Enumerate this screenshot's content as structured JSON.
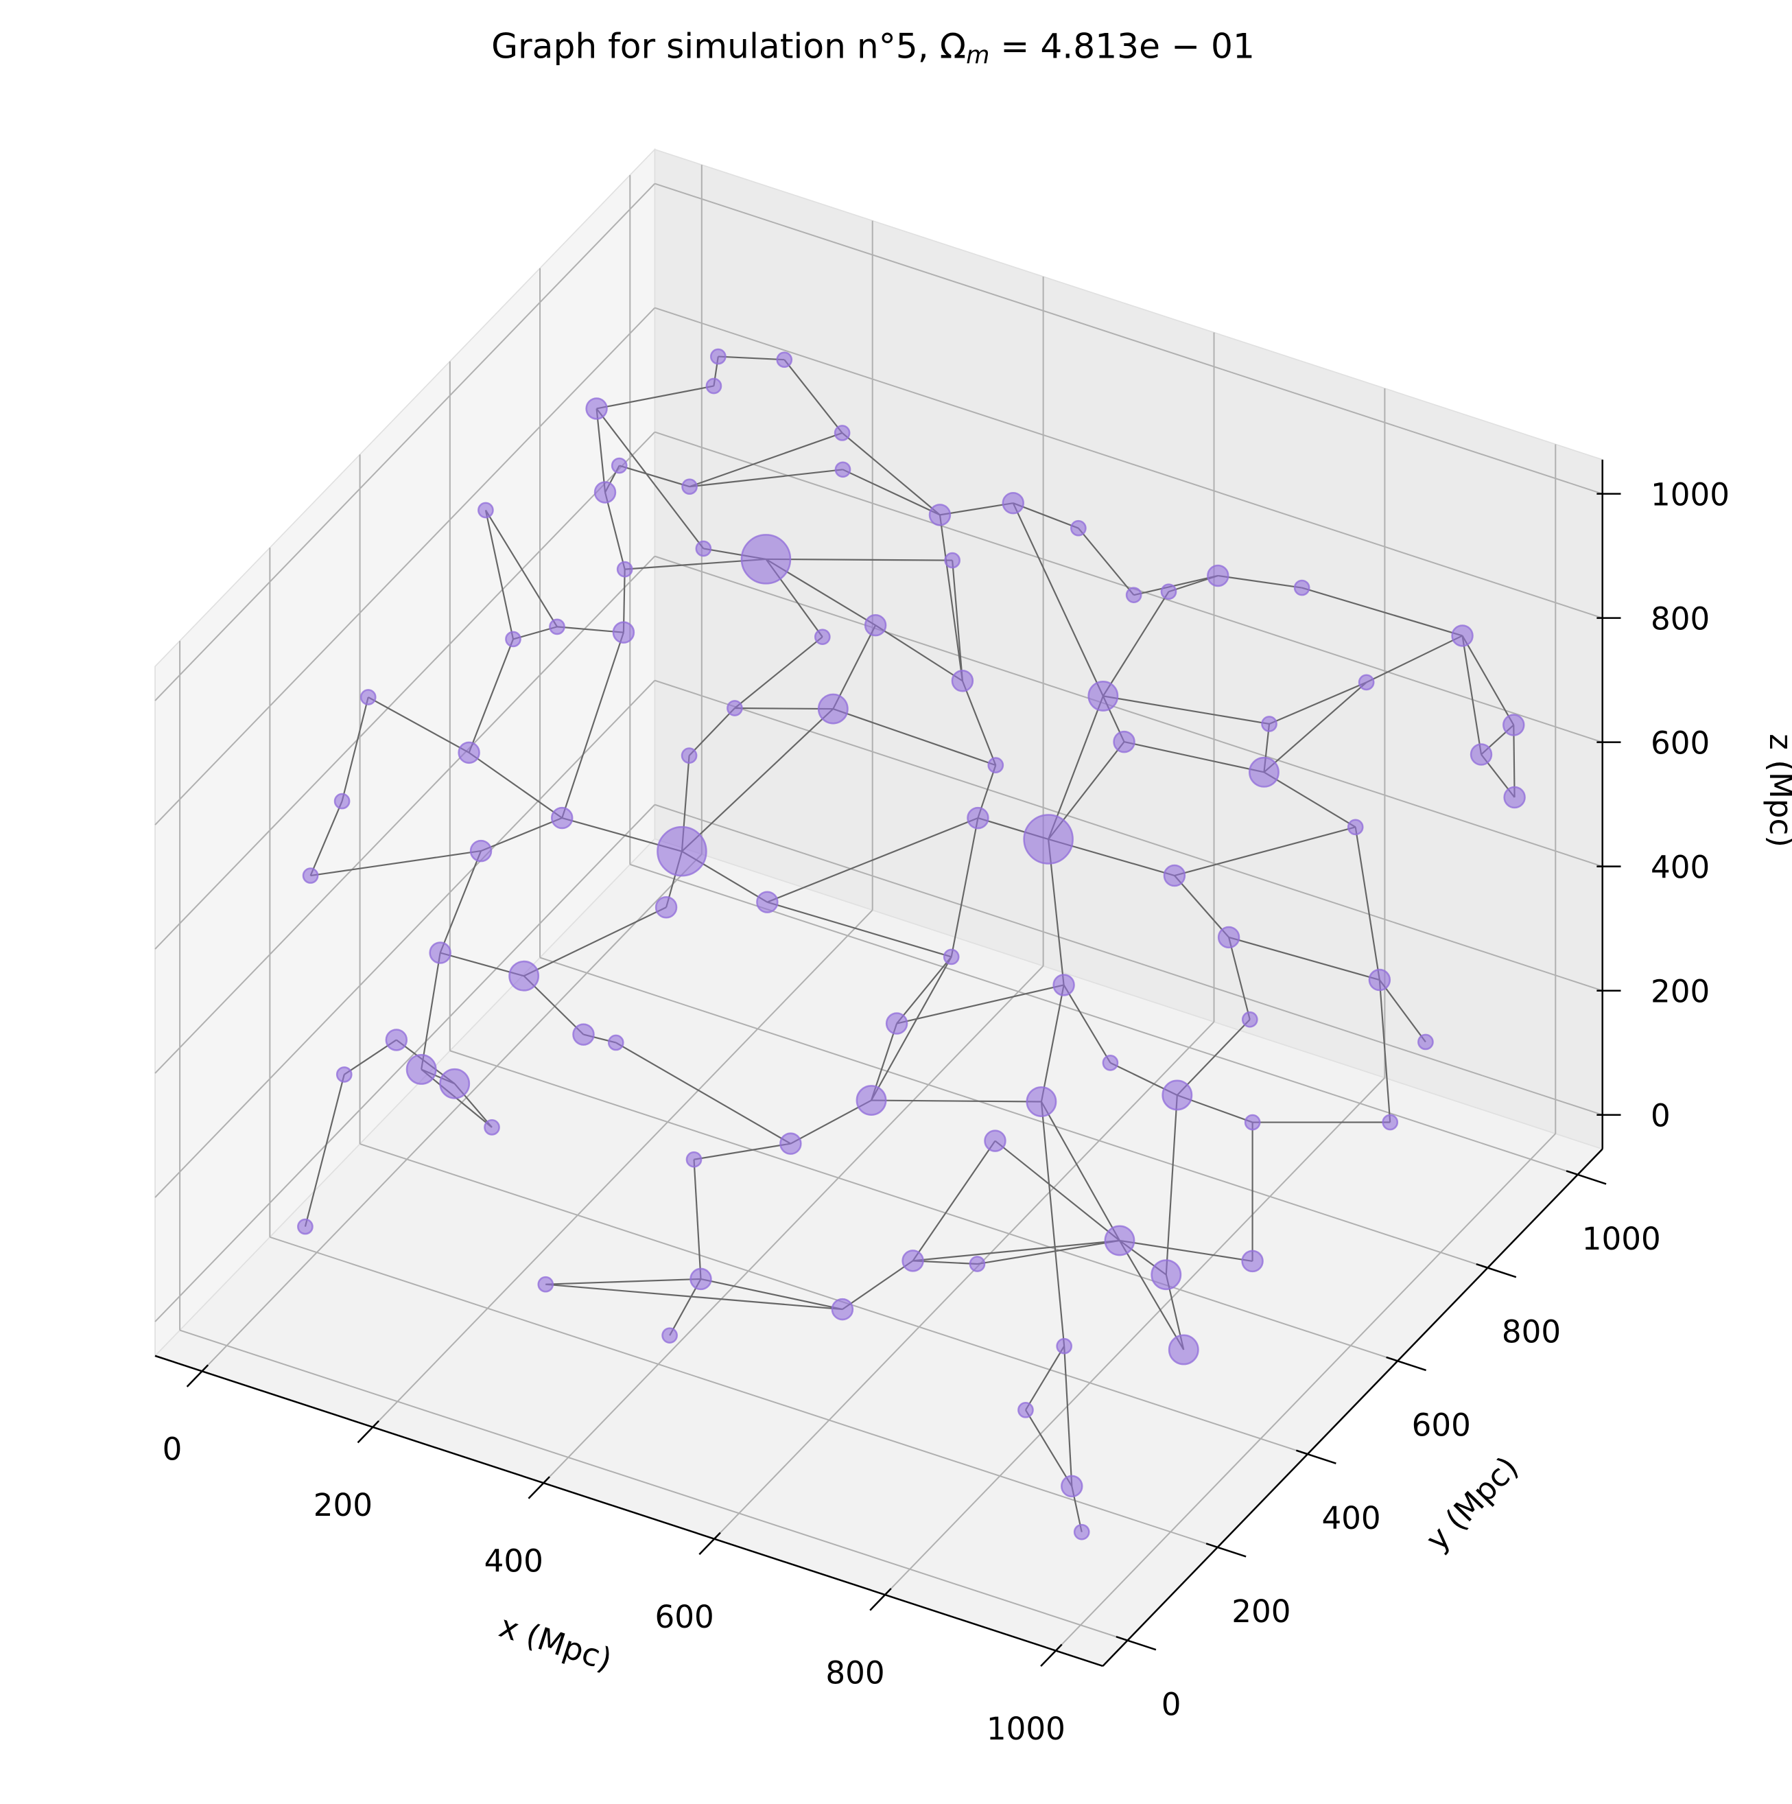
{
  "chart_data": {
    "type": "scatter3d",
    "title_parts": [
      "Graph for simulation n°5, Ω",
      "m",
      " = 4.813e − 01"
    ],
    "xlabel": "x (Mpc)",
    "ylabel": "y (Mpc)",
    "zlabel": "z (Mpc)",
    "xlim": [
      -55,
      1055
    ],
    "ylim": [
      -55,
      1055
    ],
    "zlim": [
      -55,
      1055
    ],
    "xticks": [
      0,
      200,
      400,
      600,
      800,
      1000
    ],
    "yticks": [
      0,
      200,
      400,
      600,
      800,
      1000
    ],
    "zticks": [
      0,
      200,
      400,
      600,
      800,
      1000
    ],
    "grid": true,
    "color": "#9370db",
    "edge_color": "#666666",
    "nodes": {
      "x": [
        101,
        169,
        108,
        44,
        260,
        78,
        83,
        126,
        276,
        396,
        466,
        544,
        38,
        166,
        235,
        428,
        125,
        630,
        708,
        664,
        800,
        151,
        105,
        119,
        327,
        377,
        960,
        642,
        491,
        904,
        990,
        825,
        971,
        66,
        135,
        268,
        369,
        683,
        561,
        840,
        990,
        67,
        196,
        240,
        565,
        647,
        897,
        271,
        149,
        49,
        125,
        791,
        823,
        381,
        174,
        279,
        594,
        722,
        911,
        938,
        835,
        114,
        134,
        69,
        99,
        194,
        573,
        749,
        830,
        875,
        936,
        508,
        418,
        718,
        786,
        46,
        867,
        902,
        934,
        686,
        753,
        317,
        474,
        633,
        466,
        942,
        878,
        865,
        946,
        975,
        568,
        286,
        248
      ],
      "y": [
        900,
        918,
        877,
        738,
        874,
        724,
        683,
        789,
        845,
        833,
        863,
        860,
        503,
        744,
        752,
        800,
        647,
        820,
        859,
        833,
        871,
        595,
        437,
        508,
        703,
        726,
        924,
        729,
        703,
        817,
        981,
        751,
        945,
        189,
        282,
        620,
        647,
        698,
        644,
        711,
        983,
        129,
        373,
        572,
        597,
        598,
        806,
        497,
        282,
        93,
        237,
        605,
        665,
        478,
        330,
        447,
        483,
        490,
        833,
        884,
        689,
        216,
        252,
        130,
        189,
        221,
        345,
        389,
        537,
        619,
        809,
        289,
        245,
        345,
        472,
        87,
        339,
        376,
        507,
        223,
        239,
        107,
        154,
        167,
        100,
        339,
        195,
        134,
        83,
        50,
        411,
        322,
        322
      ],
      "z": [
        908,
        920,
        881,
        920,
        876,
        854,
        844,
        793,
        846,
        836,
        864,
        861,
        930,
        745,
        753,
        802,
        766,
        822,
        859,
        833,
        872,
        715,
        802,
        775,
        706,
        730,
        827,
        733,
        709,
        807,
        654,
        754,
        625,
        877,
        749,
        627,
        651,
        701,
        649,
        713,
        536,
        755,
        603,
        574,
        601,
        603,
        579,
        490,
        597,
        654,
        456,
        604,
        474,
        472,
        371,
        441,
        476,
        483,
        319,
        193,
        329,
        279,
        238,
        315,
        340,
        218,
        339,
        383,
        319,
        234,
        119,
        282,
        249,
        339,
        400,
        92,
        250,
        183,
        121,
        223,
        236,
        106,
        150,
        163,
        96,
        108,
        193,
        130,
        82,
        46,
        411,
        320,
        316
      ],
      "sizes": [
        40,
        40,
        40,
        80,
        40,
        40,
        80,
        40,
        40,
        80,
        80,
        40,
        40,
        40,
        450,
        40,
        40,
        40,
        80,
        40,
        40,
        80,
        40,
        40,
        40,
        80,
        80,
        160,
        80,
        40,
        80,
        40,
        80,
        40,
        80,
        40,
        160,
        80,
        40,
        160,
        80,
        40,
        80,
        40,
        80,
        450,
        40,
        450,
        80,
        40,
        80,
        80,
        80,
        80,
        160,
        80,
        40,
        80,
        80,
        40,
        40,
        160,
        160,
        40,
        80,
        40,
        160,
        160,
        160,
        40,
        40,
        80,
        40,
        80,
        40,
        40,
        160,
        160,
        80,
        80,
        40,
        40,
        80,
        80,
        40,
        160,
        40,
        40,
        80,
        40,
        80,
        40,
        80
      ]
    },
    "edges": [
      [
        0,
        1
      ],
      [
        0,
        2
      ],
      [
        3,
        2
      ],
      [
        3,
        6
      ],
      [
        3,
        13
      ],
      [
        5,
        7
      ],
      [
        6,
        16
      ],
      [
        7,
        4
      ],
      [
        7,
        8
      ],
      [
        4,
        9
      ],
      [
        8,
        9
      ],
      [
        9,
        10
      ],
      [
        10,
        11
      ],
      [
        11,
        17
      ],
      [
        17,
        18
      ],
      [
        18,
        19
      ],
      [
        18,
        20
      ],
      [
        14,
        15
      ],
      [
        14,
        16
      ],
      [
        14,
        24
      ],
      [
        13,
        14
      ],
      [
        16,
        21
      ],
      [
        15,
        28
      ],
      [
        9,
        28
      ],
      [
        10,
        27
      ],
      [
        19,
        27
      ],
      [
        27,
        31
      ],
      [
        26,
        29
      ],
      [
        26,
        32
      ],
      [
        26,
        30
      ],
      [
        29,
        31
      ],
      [
        30,
        32
      ],
      [
        32,
        40
      ],
      [
        30,
        40
      ],
      [
        29,
        39
      ],
      [
        31,
        39
      ],
      [
        39,
        46
      ],
      [
        37,
        39
      ],
      [
        25,
        28
      ],
      [
        25,
        36
      ],
      [
        24,
        35
      ],
      [
        35,
        36
      ],
      [
        36,
        38
      ],
      [
        28,
        38
      ],
      [
        38,
        44
      ],
      [
        44,
        45
      ],
      [
        45,
        37
      ],
      [
        37,
        27
      ],
      [
        45,
        51
      ],
      [
        51,
        52
      ],
      [
        52,
        58
      ],
      [
        58,
        59
      ],
      [
        58,
        46
      ],
      [
        52,
        60
      ],
      [
        60,
        68
      ],
      [
        68,
        69
      ],
      [
        69,
        78
      ],
      [
        68,
        77
      ],
      [
        77,
        76
      ],
      [
        76,
        78
      ],
      [
        76,
        85
      ],
      [
        77,
        85
      ],
      [
        76,
        67
      ],
      [
        67,
        57
      ],
      [
        57,
        45
      ],
      [
        67,
        86
      ],
      [
        86,
        88
      ],
      [
        88,
        89
      ],
      [
        87,
        88
      ],
      [
        76,
        79
      ],
      [
        79,
        80
      ],
      [
        80,
        76
      ],
      [
        79,
        83
      ],
      [
        83,
        82
      ],
      [
        82,
        84
      ],
      [
        82,
        81
      ],
      [
        81,
        83
      ],
      [
        82,
        72
      ],
      [
        72,
        71
      ],
      [
        71,
        66
      ],
      [
        66,
        67
      ],
      [
        66,
        56
      ],
      [
        56,
        53
      ],
      [
        53,
        47
      ],
      [
        47,
        55
      ],
      [
        55,
        54
      ],
      [
        54,
        50
      ],
      [
        50,
        61
      ],
      [
        61,
        62
      ],
      [
        62,
        64
      ],
      [
        64,
        63
      ],
      [
        61,
        65
      ],
      [
        62,
        65
      ],
      [
        54,
        92
      ],
      [
        92,
        91
      ],
      [
        91,
        71
      ],
      [
        90,
        56
      ],
      [
        90,
        66
      ],
      [
        90,
        57
      ],
      [
        47,
        43
      ],
      [
        43,
        35
      ],
      [
        47,
        42
      ],
      [
        42,
        48
      ],
      [
        48,
        50
      ],
      [
        48,
        49
      ],
      [
        49,
        41
      ],
      [
        41,
        33
      ],
      [
        33,
        34
      ],
      [
        34,
        22
      ],
      [
        22,
        23
      ],
      [
        23,
        21
      ],
      [
        21,
        42
      ],
      [
        34,
        42
      ],
      [
        12,
        22
      ],
      [
        47,
        36
      ],
      [
        44,
        56
      ],
      [
        53,
        44
      ],
      [
        70,
        69
      ],
      [
        70,
        58
      ],
      [
        74,
        68
      ],
      [
        74,
        57
      ],
      [
        73,
        76
      ],
      [
        73,
        79
      ],
      [
        75,
        63
      ],
      [
        51,
        46
      ],
      [
        45,
        27
      ],
      [
        5,
        6
      ],
      [
        12,
        23
      ],
      [
        86,
        87
      ],
      [
        1,
        4
      ],
      [
        14,
        25
      ],
      [
        20,
        26
      ]
    ]
  }
}
